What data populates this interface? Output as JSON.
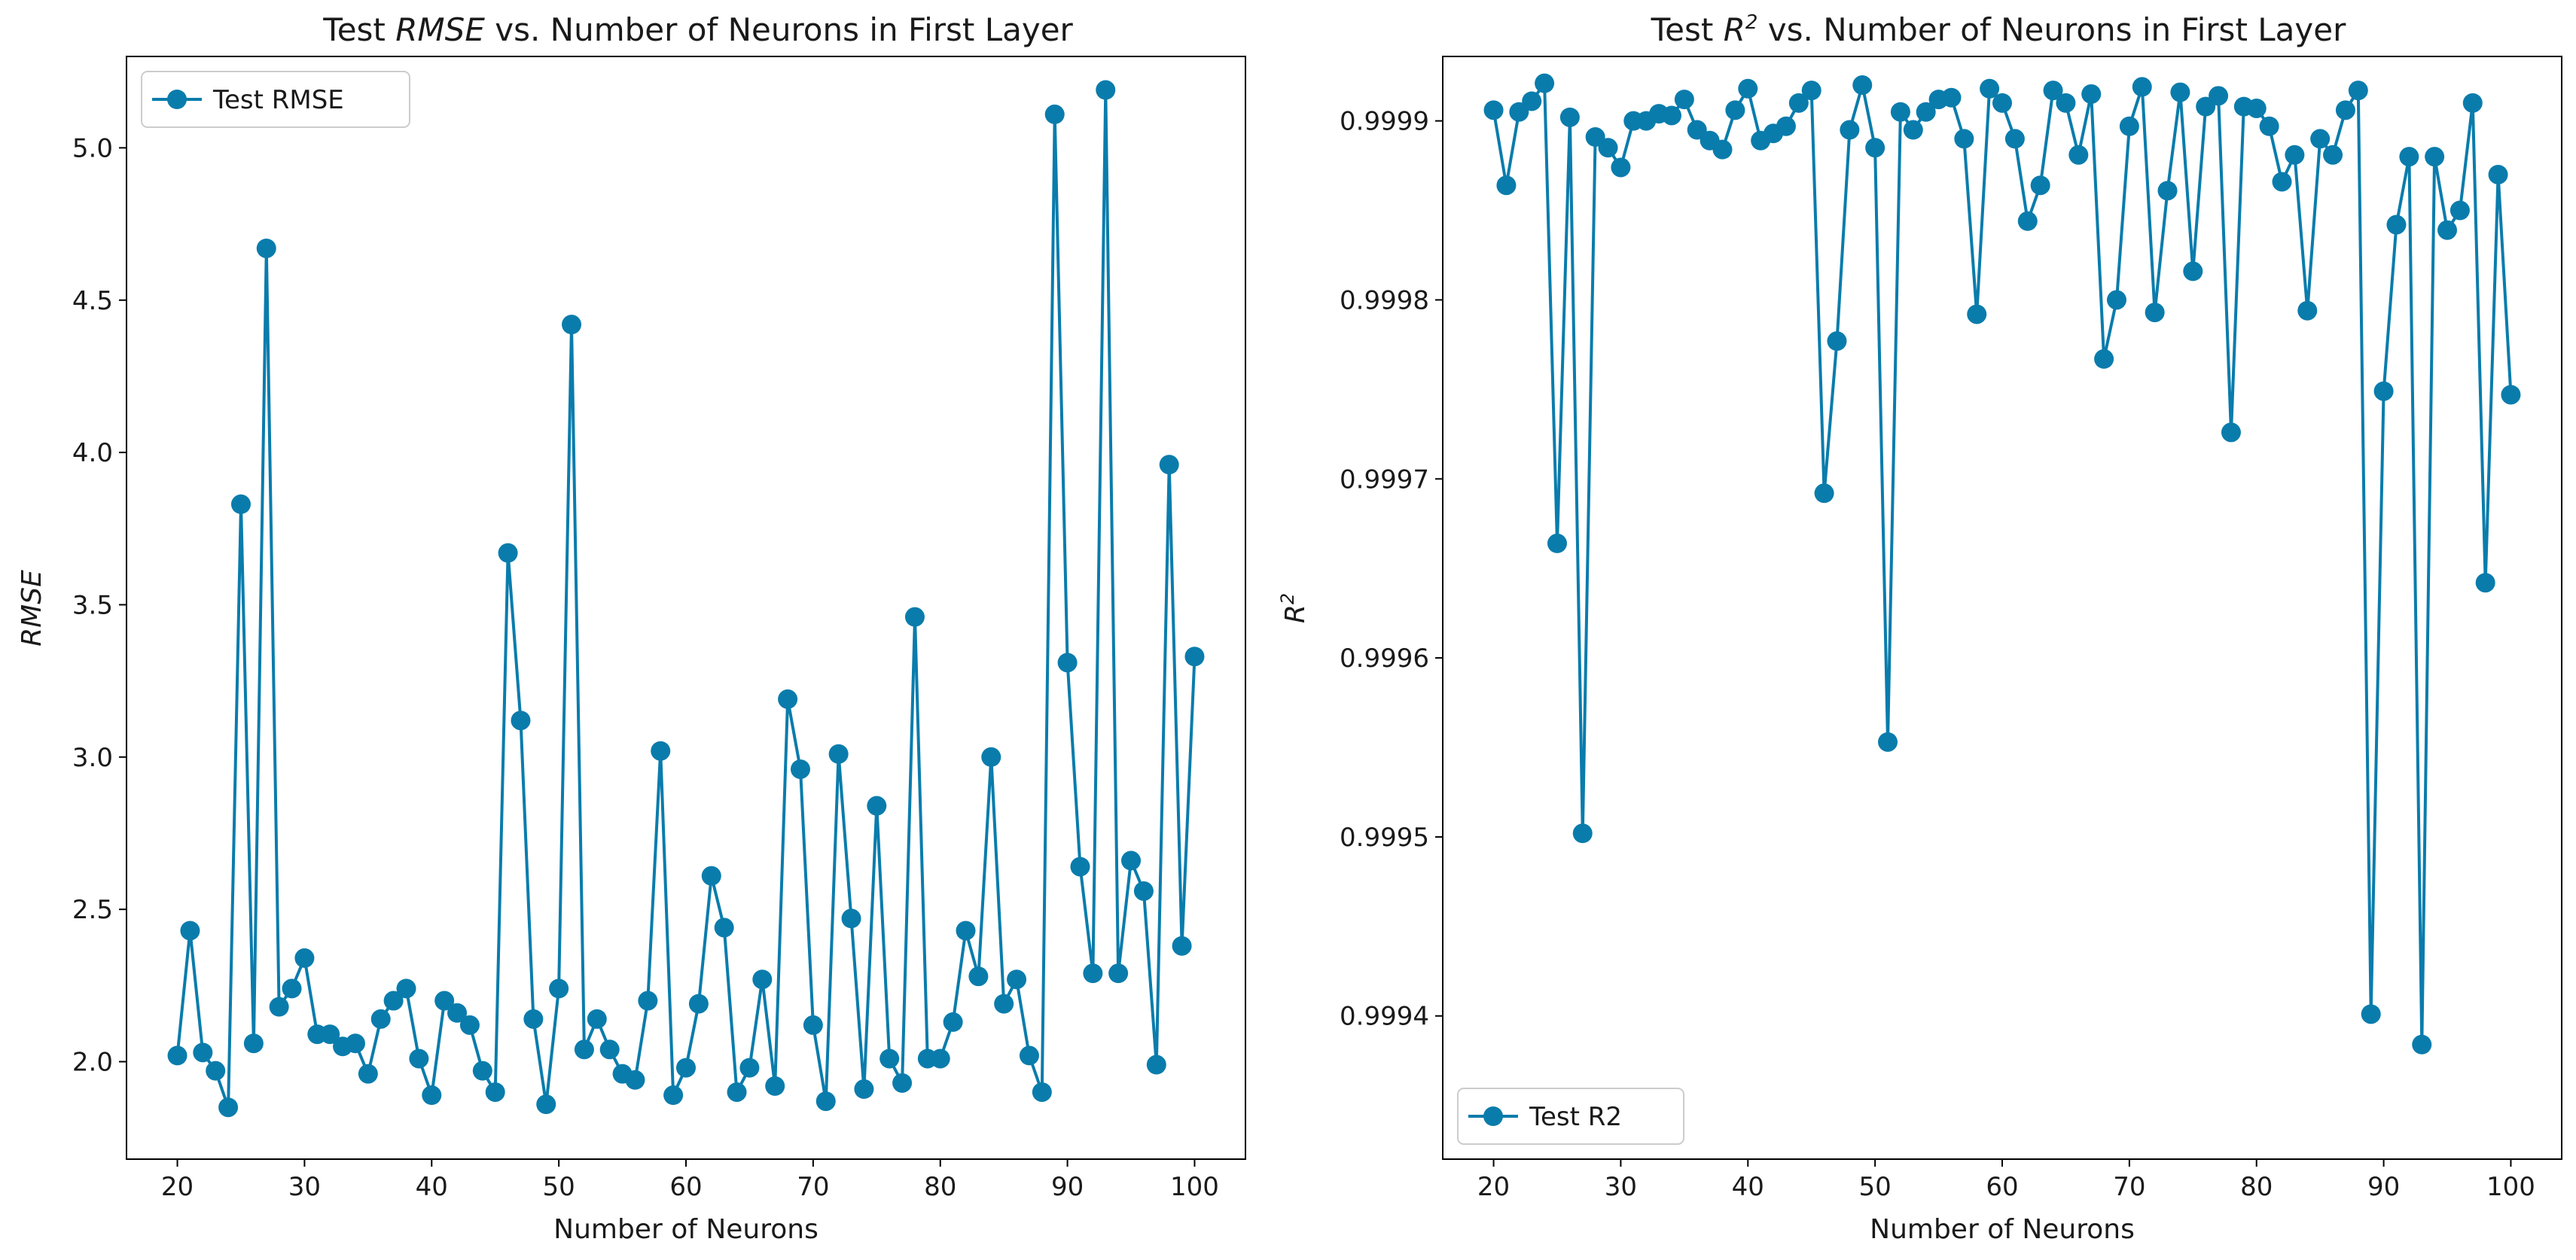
{
  "colors": {
    "series": "#0a7cac",
    "axis": "#000000",
    "legend_border": "#cccccc"
  },
  "chart_data": [
    {
      "type": "line",
      "title_prefix": "Test ",
      "title_italic": "RMSE",
      "title_suffix": " vs. Number of Neurons in First Layer",
      "xlabel": "Number of Neurons",
      "ylabel": "RMSE",
      "xlim": [
        16,
        104
      ],
      "ylim": [
        1.68,
        5.3
      ],
      "xticks": [
        20,
        30,
        40,
        50,
        60,
        70,
        80,
        90,
        100
      ],
      "yticks": [
        2.0,
        2.5,
        3.0,
        3.5,
        4.0,
        4.5,
        5.0
      ],
      "ytick_labels": [
        "2.0",
        "2.5",
        "3.0",
        "3.5",
        "4.0",
        "4.5",
        "5.0"
      ],
      "legend": "Test RMSE",
      "legend_loc": "upper-left",
      "series": [
        {
          "name": "Test RMSE",
          "x": [
            20,
            21,
            22,
            23,
            24,
            25,
            26,
            27,
            28,
            29,
            30,
            31,
            32,
            33,
            34,
            35,
            36,
            37,
            38,
            39,
            40,
            41,
            42,
            43,
            44,
            45,
            46,
            47,
            48,
            49,
            50,
            51,
            52,
            53,
            54,
            55,
            56,
            57,
            58,
            59,
            60,
            61,
            62,
            63,
            64,
            65,
            66,
            67,
            68,
            69,
            70,
            71,
            72,
            73,
            74,
            75,
            76,
            77,
            78,
            79,
            80,
            81,
            82,
            83,
            84,
            85,
            86,
            87,
            88,
            89,
            90,
            91,
            92,
            93,
            94,
            95,
            96,
            97,
            98,
            99,
            100
          ],
          "values": [
            2.02,
            2.43,
            2.03,
            1.97,
            1.85,
            3.83,
            2.06,
            4.67,
            2.18,
            2.24,
            2.34,
            2.09,
            2.09,
            2.05,
            2.06,
            1.96,
            2.14,
            2.2,
            2.24,
            2.01,
            1.89,
            2.2,
            2.16,
            2.12,
            1.97,
            1.9,
            3.67,
            3.12,
            2.14,
            1.86,
            2.24,
            4.42,
            2.04,
            2.14,
            2.04,
            1.96,
            1.94,
            2.2,
            3.02,
            1.89,
            1.98,
            2.19,
            2.61,
            2.44,
            1.9,
            1.98,
            2.27,
            1.92,
            3.19,
            2.96,
            2.12,
            1.87,
            3.01,
            2.47,
            1.91,
            2.84,
            2.01,
            1.93,
            3.46,
            2.01,
            2.01,
            2.13,
            2.43,
            2.28,
            3.0,
            2.19,
            2.27,
            2.02,
            1.9,
            5.11,
            3.31,
            2.64,
            2.29,
            5.19,
            2.29,
            2.66,
            2.56,
            1.99,
            3.96,
            2.38,
            3.33
          ]
        }
      ]
    },
    {
      "type": "line",
      "title_prefix": "Test ",
      "title_italic": "R",
      "title_sup": "2",
      "title_suffix": " vs. Number of Neurons in First Layer",
      "xlabel": "Number of Neurons",
      "ylabel": "R",
      "ylabel_sup": "2",
      "xlim": [
        16,
        104
      ],
      "ylim": [
        0.99932,
        0.999936
      ],
      "xticks": [
        20,
        30,
        40,
        50,
        60,
        70,
        80,
        90,
        100
      ],
      "yticks": [
        0.9994,
        0.9995,
        0.9996,
        0.9997,
        0.9998,
        0.9999
      ],
      "ytick_labels": [
        "0.9994",
        "0.9995",
        "0.9996",
        "0.9997",
        "0.9998",
        "0.9999"
      ],
      "legend": "Test R2",
      "legend_loc": "lower-left",
      "series": [
        {
          "name": "Test R2",
          "x": [
            20,
            21,
            22,
            23,
            24,
            25,
            26,
            27,
            28,
            29,
            30,
            31,
            32,
            33,
            34,
            35,
            36,
            37,
            38,
            39,
            40,
            41,
            42,
            43,
            44,
            45,
            46,
            47,
            48,
            49,
            50,
            51,
            52,
            53,
            54,
            55,
            56,
            57,
            58,
            59,
            60,
            61,
            62,
            63,
            64,
            65,
            66,
            67,
            68,
            69,
            70,
            71,
            72,
            73,
            74,
            75,
            76,
            77,
            78,
            79,
            80,
            81,
            82,
            83,
            84,
            85,
            86,
            87,
            88,
            89,
            90,
            91,
            92,
            93,
            94,
            95,
            96,
            97,
            98,
            99,
            100
          ],
          "values": [
            0.999906,
            0.999864,
            0.999905,
            0.999911,
            0.999921,
            0.999664,
            0.999902,
            0.999502,
            0.999891,
            0.999885,
            0.999874,
            0.9999,
            0.9999,
            0.999904,
            0.999903,
            0.999912,
            0.999895,
            0.999889,
            0.999884,
            0.999906,
            0.999918,
            0.999889,
            0.999893,
            0.999897,
            0.99991,
            0.999917,
            0.999692,
            0.999777,
            0.999895,
            0.99992,
            0.999885,
            0.999553,
            0.999905,
            0.999895,
            0.999905,
            0.999912,
            0.999913,
            0.99989,
            0.999792,
            0.999918,
            0.99991,
            0.99989,
            0.999844,
            0.999864,
            0.999917,
            0.99991,
            0.999881,
            0.999915,
            0.999767,
            0.9998,
            0.999897,
            0.999919,
            0.999793,
            0.999861,
            0.999916,
            0.999816,
            0.999908,
            0.999914,
            0.999726,
            0.999908,
            0.999907,
            0.999897,
            0.999866,
            0.999881,
            0.999794,
            0.99989,
            0.999881,
            0.999906,
            0.999917,
            0.999401,
            0.999749,
            0.999842,
            0.99988,
            0.999384,
            0.99988,
            0.999839,
            0.99985,
            0.99991,
            0.999642,
            0.99987,
            0.999747
          ]
        }
      ]
    }
  ]
}
